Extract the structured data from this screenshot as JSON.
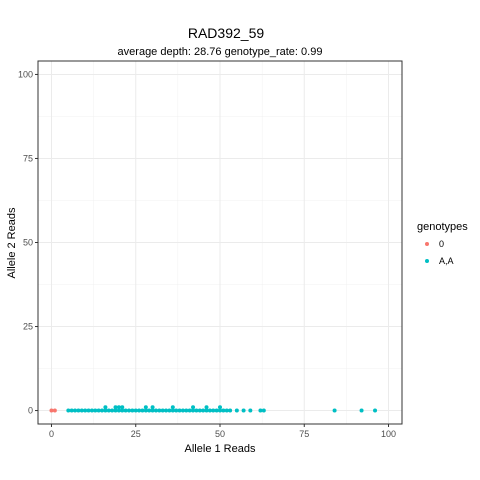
{
  "chart_data": {
    "type": "scatter",
    "title": "RAD392_59",
    "subtitle": "average depth:  28.76  genotype_rate:  0.99",
    "xlabel": "Allele 1 Reads",
    "ylabel": "Allele 2 Reads",
    "xlim": [
      -4,
      104
    ],
    "ylim": [
      -4,
      104
    ],
    "x_ticks": [
      0,
      25,
      50,
      75,
      100
    ],
    "y_ticks": [
      0,
      25,
      50,
      75,
      100
    ],
    "grid": true,
    "legend": {
      "title": "genotypes",
      "placement": "right"
    },
    "series": [
      {
        "name": "0",
        "color": "#F8766D",
        "points": [
          [
            0,
            0
          ],
          [
            1,
            0
          ]
        ]
      },
      {
        "name": "A,A",
        "color": "#00BFC4",
        "points": [
          [
            5,
            0
          ],
          [
            6,
            0
          ],
          [
            7,
            0
          ],
          [
            8,
            0
          ],
          [
            9,
            0
          ],
          [
            10,
            0
          ],
          [
            11,
            0
          ],
          [
            12,
            0
          ],
          [
            13,
            0
          ],
          [
            14,
            0
          ],
          [
            15,
            0
          ],
          [
            16,
            0
          ],
          [
            16,
            1
          ],
          [
            17,
            0
          ],
          [
            18,
            0
          ],
          [
            19,
            0
          ],
          [
            19,
            1
          ],
          [
            20,
            0
          ],
          [
            20,
            1
          ],
          [
            21,
            0
          ],
          [
            21,
            1
          ],
          [
            22,
            0
          ],
          [
            23,
            0
          ],
          [
            24,
            0
          ],
          [
            25,
            0
          ],
          [
            26,
            0
          ],
          [
            27,
            0
          ],
          [
            28,
            0
          ],
          [
            28,
            1
          ],
          [
            29,
            0
          ],
          [
            30,
            0
          ],
          [
            30,
            1
          ],
          [
            31,
            0
          ],
          [
            32,
            0
          ],
          [
            33,
            0
          ],
          [
            34,
            0
          ],
          [
            35,
            0
          ],
          [
            36,
            0
          ],
          [
            36,
            1
          ],
          [
            37,
            0
          ],
          [
            38,
            0
          ],
          [
            39,
            0
          ],
          [
            40,
            0
          ],
          [
            41,
            0
          ],
          [
            42,
            0
          ],
          [
            42,
            1
          ],
          [
            43,
            0
          ],
          [
            44,
            0
          ],
          [
            45,
            0
          ],
          [
            46,
            0
          ],
          [
            46,
            1
          ],
          [
            47,
            0
          ],
          [
            48,
            0
          ],
          [
            49,
            0
          ],
          [
            50,
            0
          ],
          [
            50,
            1
          ],
          [
            51,
            0
          ],
          [
            52,
            0
          ],
          [
            53,
            0
          ],
          [
            55,
            0
          ],
          [
            57,
            0
          ],
          [
            59,
            0
          ],
          [
            62,
            0
          ],
          [
            63,
            0
          ],
          [
            84,
            0
          ],
          [
            92,
            0
          ],
          [
            96,
            0
          ]
        ]
      }
    ]
  }
}
